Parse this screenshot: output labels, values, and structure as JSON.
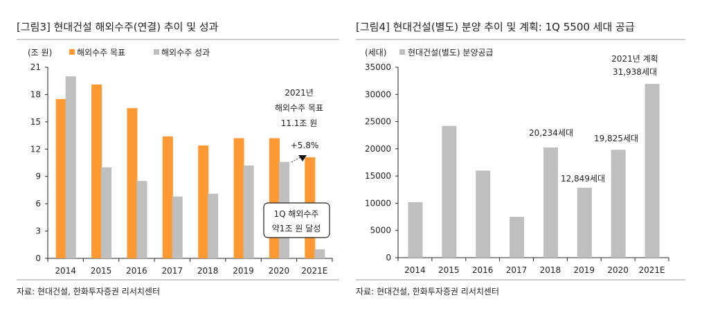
{
  "chart_data": [
    {
      "type": "bar",
      "title": "[그림3]    현대건설 해외수주(연결) 추이 및 성과",
      "ylabel": "(조 원)",
      "categories": [
        "2014",
        "2015",
        "2016",
        "2017",
        "2018",
        "2019",
        "2020",
        "2021E"
      ],
      "ylim": [
        0,
        21
      ],
      "yticks": [
        0,
        3,
        6,
        9,
        12,
        15,
        18,
        21
      ],
      "series": [
        {
          "name": "해외수주 목표",
          "color": "#FF9933",
          "values": [
            17.5,
            19.1,
            16.5,
            13.4,
            12.4,
            13.2,
            13.2,
            11.1
          ]
        },
        {
          "name": "해외수주 성과",
          "color": "#BFBFBF",
          "values": [
            20.0,
            10.0,
            8.5,
            6.8,
            7.1,
            10.2,
            10.6,
            1.0
          ]
        }
      ],
      "annotations": [
        "2021년",
        "해외수주  목표",
        "11.1조  원",
        "+5.8%",
        "1Q  해외수주",
        "약1조  원 달성"
      ],
      "source": "자료: 현대건설, 한화투자증권 리서치센터",
      "grid": false,
      "legend": "top-left"
    },
    {
      "type": "bar",
      "title": "[그림4]    현대건설(별도) 분양 추이 및 계획: 1Q 5500 세대 공급",
      "ylabel": "(세대)",
      "categories": [
        "2014",
        "2015",
        "2016",
        "2017",
        "2018",
        "2019",
        "2020",
        "2021E"
      ],
      "ylim": [
        0,
        35000
      ],
      "yticks": [
        0,
        5000,
        10000,
        15000,
        20000,
        25000,
        30000,
        35000
      ],
      "series": [
        {
          "name": "현대건설(별도)  분양공급",
          "color": "#BFBFBF",
          "values": [
            10200,
            24200,
            16000,
            7500,
            20234,
            12849,
            19825,
            31938
          ]
        }
      ],
      "annotations": [
        "20,234세대",
        "12,849세대",
        "19,825세대",
        "2021년  계획",
        "31,938세대"
      ],
      "source": "자료: 현대건설, 한화투자증권 리서치센터",
      "grid": false,
      "legend": "top-left"
    }
  ]
}
